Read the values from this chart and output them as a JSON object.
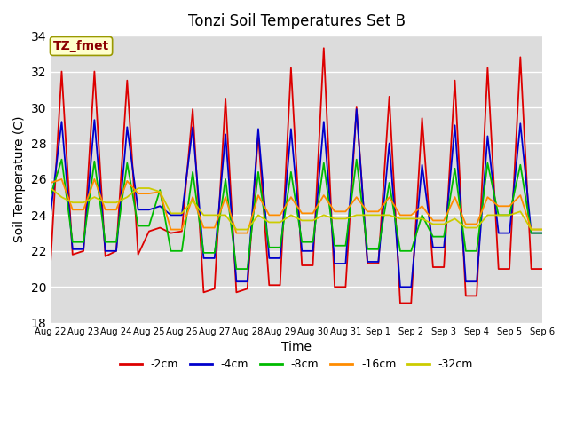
{
  "title": "Tonzi Soil Temperatures Set B",
  "xlabel": "Time",
  "ylabel": "Soil Temperature (C)",
  "ylim": [
    18,
    34
  ],
  "yticks": [
    18,
    20,
    22,
    24,
    26,
    28,
    30,
    32,
    34
  ],
  "annotation_text": "TZ_fmet",
  "annotation_color": "#8B0000",
  "annotation_bg": "#FFFFCC",
  "bg_color": "#DCDCDC",
  "series_colors": [
    "#DD0000",
    "#0000CC",
    "#00BB00",
    "#FF8C00",
    "#CCCC00"
  ],
  "series_labels": [
    "-2cm",
    "-4cm",
    "-8cm",
    "-16cm",
    "-32cm"
  ],
  "x_labels": [
    "Aug 22",
    "Aug 23",
    "Aug 24",
    "Aug 25",
    "Aug 26",
    "Aug 27",
    "Aug 28",
    "Aug 29",
    "Aug 30",
    "Aug 31",
    "Sep 1",
    "Sep 2",
    "Sep 3",
    "Sep 4",
    "Sep 5",
    "Sep 6"
  ],
  "n_days": 16,
  "pts_per_day": 3,
  "data_2cm": [
    21.5,
    32.0,
    21.8,
    22.0,
    32.0,
    21.7,
    22.0,
    31.5,
    21.8,
    23.1,
    23.3,
    23.0,
    23.1,
    29.9,
    19.7,
    19.9,
    30.5,
    19.7,
    19.9,
    28.5,
    20.1,
    20.1,
    32.2,
    21.2,
    21.2,
    33.3,
    20.0,
    20.0,
    30.0,
    21.3,
    21.3,
    30.6,
    19.1,
    19.1,
    29.4,
    21.1,
    21.1,
    31.5,
    19.5,
    19.5,
    32.2,
    21.0,
    21.0,
    32.8,
    21.0,
    21.0
  ],
  "data_4cm": [
    24.2,
    29.2,
    22.1,
    22.1,
    29.3,
    22.0,
    22.0,
    28.9,
    24.3,
    24.3,
    24.5,
    24.0,
    24.0,
    28.9,
    21.6,
    21.6,
    28.5,
    20.3,
    20.3,
    28.8,
    21.6,
    21.6,
    28.8,
    22.0,
    22.0,
    29.2,
    21.3,
    21.3,
    29.9,
    21.4,
    21.4,
    28.0,
    20.0,
    20.0,
    26.8,
    22.2,
    22.2,
    29.0,
    20.3,
    20.3,
    28.4,
    23.0,
    23.0,
    29.1,
    23.0,
    23.0
  ],
  "data_8cm": [
    25.1,
    27.1,
    22.5,
    22.5,
    27.0,
    22.5,
    22.5,
    26.9,
    23.4,
    23.4,
    25.4,
    22.0,
    22.0,
    26.4,
    21.9,
    21.9,
    26.0,
    21.0,
    21.0,
    26.4,
    22.2,
    22.2,
    26.4,
    22.5,
    22.5,
    26.9,
    22.3,
    22.3,
    27.1,
    22.1,
    22.1,
    25.8,
    22.0,
    22.0,
    24.0,
    22.8,
    22.8,
    26.6,
    22.0,
    22.0,
    26.9,
    24.0,
    24.0,
    26.8,
    23.0,
    23.0
  ],
  "data_16cm": [
    25.8,
    26.0,
    24.3,
    24.3,
    26.0,
    24.3,
    24.3,
    25.9,
    25.2,
    25.2,
    25.3,
    23.2,
    23.2,
    25.0,
    23.3,
    23.3,
    25.0,
    23.0,
    23.0,
    25.1,
    24.0,
    24.0,
    25.0,
    24.1,
    24.1,
    25.1,
    24.2,
    24.2,
    25.0,
    24.2,
    24.2,
    25.0,
    24.0,
    24.0,
    24.5,
    23.7,
    23.7,
    25.0,
    23.5,
    23.5,
    25.0,
    24.5,
    24.5,
    25.1,
    23.2,
    23.2
  ],
  "data_32cm": [
    25.5,
    25.0,
    24.7,
    24.7,
    25.0,
    24.7,
    24.7,
    25.0,
    25.5,
    25.5,
    25.3,
    24.1,
    24.1,
    24.8,
    24.0,
    24.0,
    24.0,
    23.2,
    23.2,
    24.0,
    23.6,
    23.6,
    24.0,
    23.7,
    23.7,
    24.0,
    23.8,
    23.8,
    24.0,
    24.0,
    24.0,
    24.0,
    23.8,
    23.8,
    23.8,
    23.5,
    23.5,
    23.8,
    23.3,
    23.3,
    24.0,
    24.0,
    24.0,
    24.2,
    23.2,
    23.2
  ]
}
